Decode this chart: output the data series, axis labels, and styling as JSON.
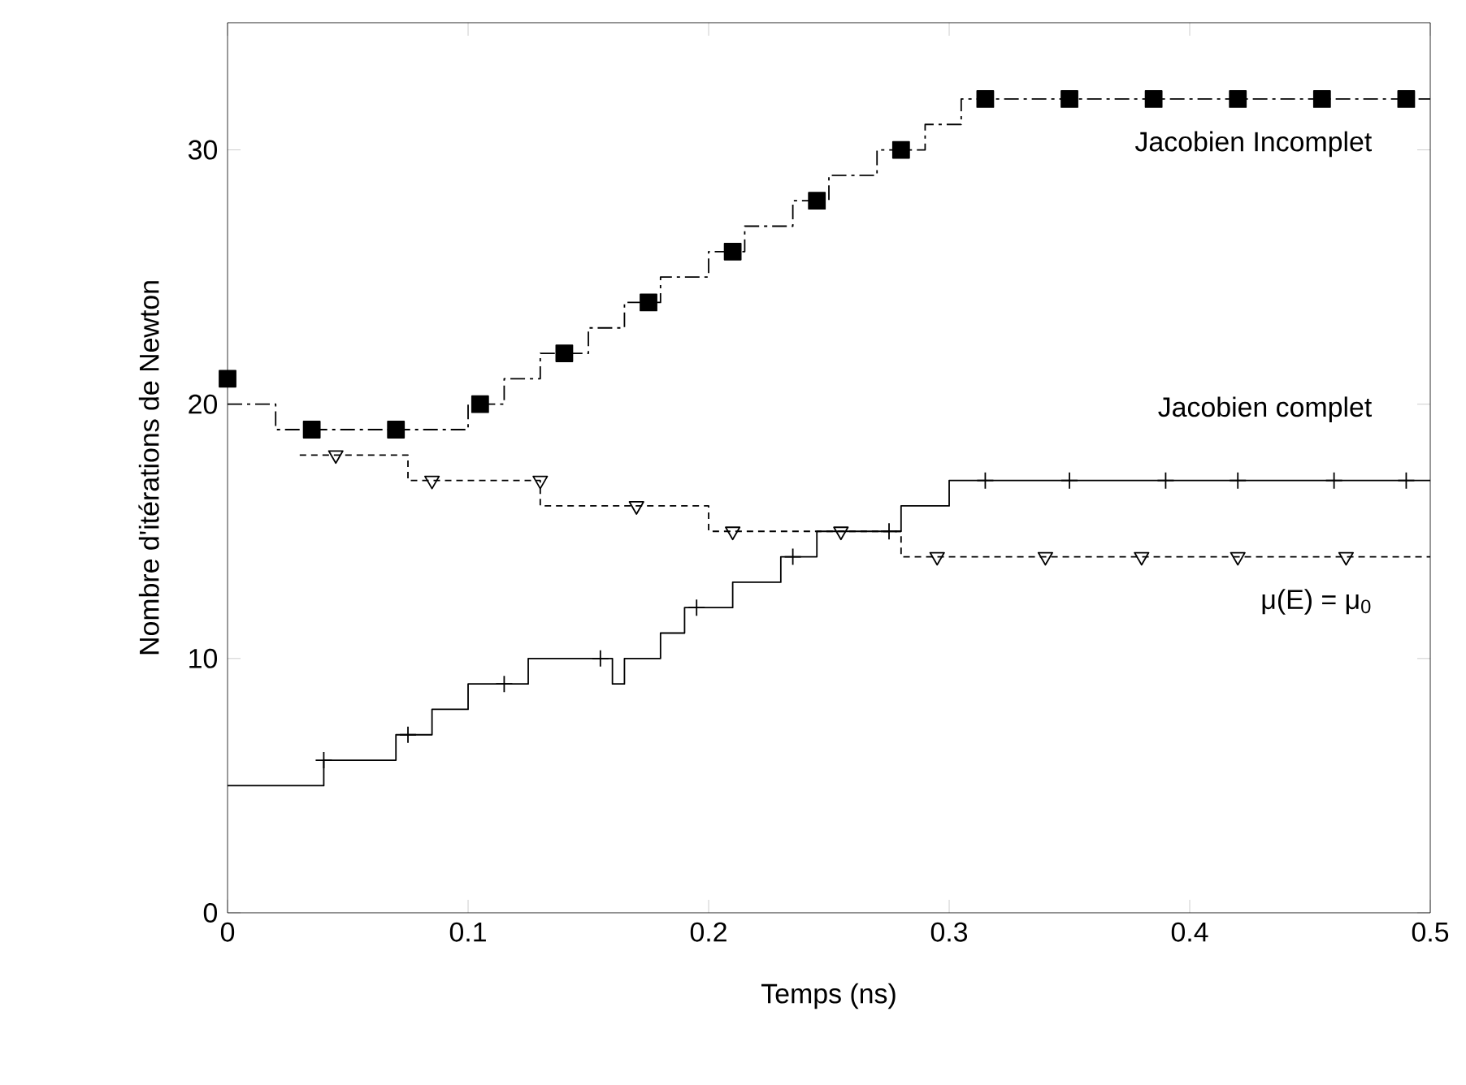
{
  "chart_data": {
    "type": "step",
    "xlabel": "Temps (ns)",
    "ylabel": "Nombre d'itérations de Newton",
    "xlim": [
      0,
      0.5
    ],
    "ylim": [
      0,
      35
    ],
    "xticks": [
      0,
      0.1,
      0.2,
      0.3,
      0.4,
      0.5
    ],
    "yticks": [
      0,
      10,
      20,
      30
    ],
    "grid": false,
    "series": [
      {
        "name": "Jacobien Incomplet",
        "color": "#000000",
        "line_style": "dashdot",
        "marker": "none",
        "x": [
          0,
          0.02,
          0.1,
          0.115,
          0.13,
          0.15,
          0.165,
          0.18,
          0.2,
          0.215,
          0.235,
          0.25,
          0.27,
          0.29,
          0.305,
          0.5
        ],
        "values": [
          20,
          19,
          20,
          21,
          22,
          23,
          24,
          25,
          26,
          27,
          28,
          29,
          30,
          31,
          32,
          32
        ]
      },
      {
        "type": "scatter",
        "color": "#000000",
        "marker": "square",
        "x": [
          0,
          0.035,
          0.07,
          0.105,
          0.14,
          0.175,
          0.21,
          0.245,
          0.28,
          0.315,
          0.35,
          0.385,
          0.42,
          0.455,
          0.49
        ],
        "values": [
          21,
          19,
          19,
          20,
          22,
          24,
          26,
          28,
          30,
          32,
          32,
          32,
          32,
          32,
          32
        ]
      },
      {
        "name": "Jacobien complet",
        "color": "#000000",
        "line_style": "solid",
        "marker": "none",
        "x": [
          0,
          0.04,
          0.07,
          0.085,
          0.1,
          0.125,
          0.16,
          0.165,
          0.18,
          0.19,
          0.21,
          0.23,
          0.245,
          0.28,
          0.3,
          0.5
        ],
        "values": [
          5,
          6,
          7,
          8,
          9,
          10,
          9,
          10,
          11,
          12,
          13,
          14,
          15,
          16,
          17,
          17
        ]
      },
      {
        "type": "scatter",
        "color": "#000000",
        "marker": "cross",
        "x": [
          0.04,
          0.075,
          0.115,
          0.155,
          0.195,
          0.235,
          0.275,
          0.315,
          0.35,
          0.39,
          0.42,
          0.46,
          0.49
        ],
        "values": [
          6,
          7,
          9,
          10,
          12,
          14,
          15,
          17,
          17,
          17,
          17,
          17,
          17
        ]
      },
      {
        "name": "μ(E) = μ$_{0}$",
        "color": "#000000",
        "line_style": "dashed",
        "marker": "none",
        "x": [
          0.03,
          0.075,
          0.13,
          0.2,
          0.28,
          0.5
        ],
        "values": [
          18,
          17,
          16,
          15,
          14,
          14
        ]
      },
      {
        "type": "scatter",
        "color": "#000000",
        "marker": "triangle",
        "x": [
          0.045,
          0.085,
          0.13,
          0.17,
          0.21,
          0.255,
          0.295,
          0.34,
          0.38,
          0.42,
          0.465
        ],
        "values": [
          18,
          17,
          17,
          16,
          15,
          15,
          14,
          14,
          14,
          14,
          14
        ]
      }
    ]
  }
}
